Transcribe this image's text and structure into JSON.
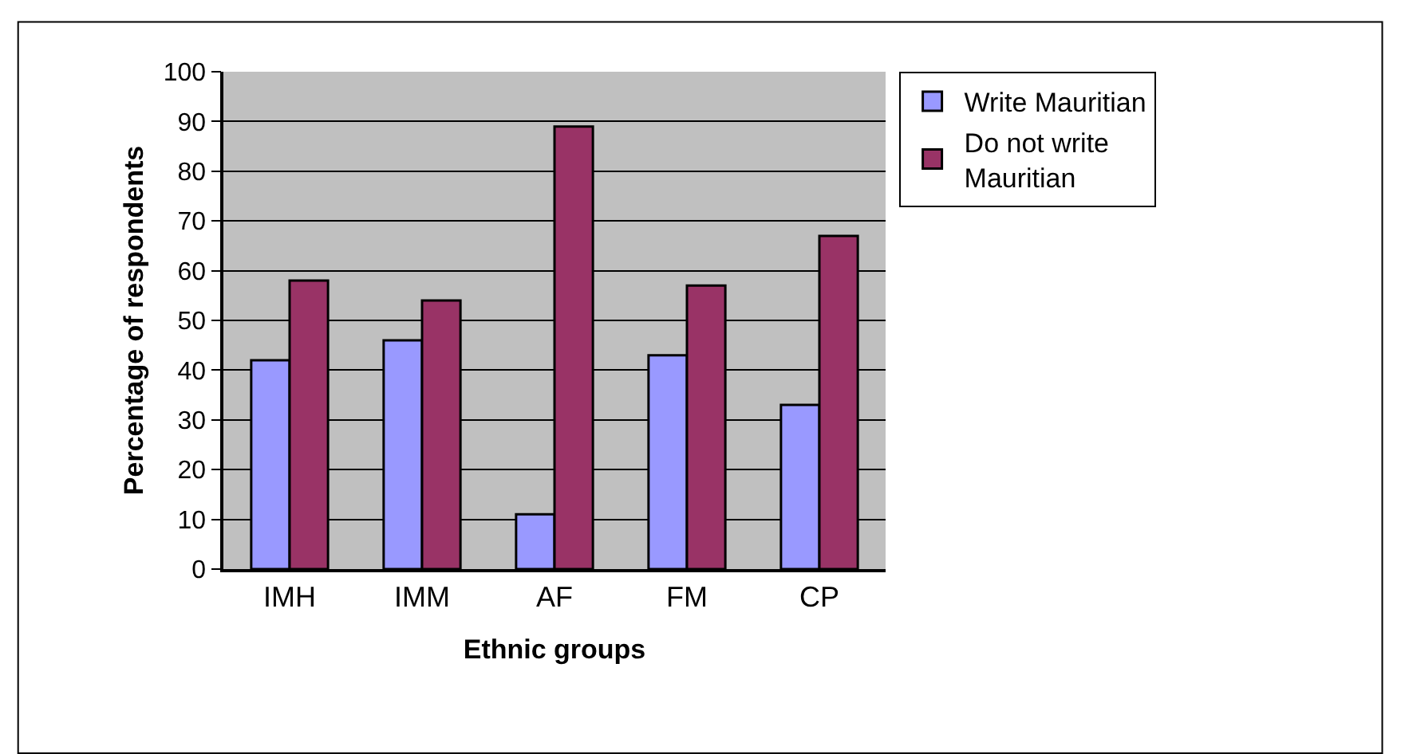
{
  "chart_data": {
    "type": "bar",
    "xlabel": "Ethnic groups",
    "ylabel": "Percentage of respondents",
    "categories": [
      "IMH",
      "IMM",
      "AF",
      "FM",
      "CP"
    ],
    "series": [
      {
        "name": "Write Mauritian",
        "color": "#9999ff",
        "values": [
          42,
          46,
          11,
          43,
          33
        ]
      },
      {
        "name": "Do not write Mauritian",
        "color": "#993366",
        "values": [
          58,
          54,
          89,
          57,
          67
        ]
      }
    ],
    "ylim": [
      0,
      100
    ],
    "yticks": [
      0,
      10,
      20,
      30,
      40,
      50,
      60,
      70,
      80,
      90,
      100
    ],
    "grid": "y",
    "legend": "top right"
  }
}
